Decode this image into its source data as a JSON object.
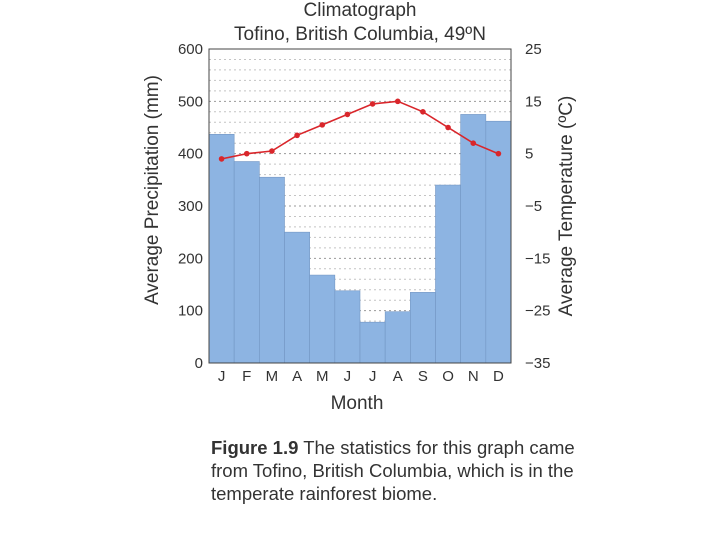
{
  "chart_data": {
    "type": "bar+line",
    "title": "Climatograph",
    "subtitle": "Tofino, British Columbia, 49ºN",
    "xlabel": "Month",
    "categories": [
      "J",
      "F",
      "M",
      "A",
      "M",
      "J",
      "J",
      "A",
      "S",
      "O",
      "N",
      "D"
    ],
    "ylabel_left": "Average Precipitation (mm)",
    "ylim_left": [
      0,
      600
    ],
    "yticks_left": [
      "0",
      "100",
      "200",
      "300",
      "400",
      "500",
      "600"
    ],
    "ylabel_right": "Average Temperature (ºC)",
    "ylim_right": [
      -35,
      25
    ],
    "yticks_right": [
      "−35",
      "−25",
      "−15",
      "−5",
      "5",
      "15",
      "25"
    ],
    "series": [
      {
        "name": "Average Precipitation (mm)",
        "type": "bar",
        "axis": "left",
        "color": "#8db4e2",
        "values": [
          437,
          385,
          355,
          250,
          168,
          138,
          78,
          98,
          135,
          340,
          475,
          462
        ]
      },
      {
        "name": "Average Temperature (ºC)",
        "type": "line",
        "axis": "right",
        "color": "#d9262b",
        "values": [
          4,
          5,
          5.5,
          8.5,
          10.5,
          12.5,
          14.5,
          15,
          13,
          10,
          7,
          5
        ]
      }
    ]
  },
  "caption": {
    "figure_label": "Figure 1.9",
    "text": "The statistics for this graph came from Tofino, British Columbia, which is in the temperate rainforest biome."
  }
}
